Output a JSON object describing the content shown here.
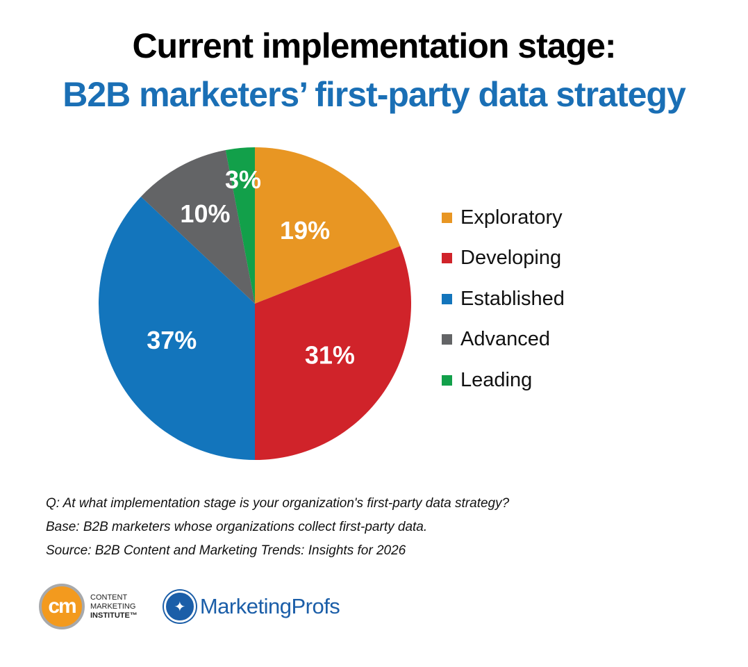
{
  "title": {
    "line1": "Current implementation stage:",
    "line2": "B2B marketers’ first-party data strategy"
  },
  "colors": {
    "Exploratory": "#e89623",
    "Developing": "#d0232a",
    "Established": "#1375bc",
    "Advanced": "#636466",
    "Leading": "#12a04a",
    "title_accent": "#1a6fb5"
  },
  "legend": [
    {
      "label": "Exploratory",
      "color": "#e89623"
    },
    {
      "label": "Developing",
      "color": "#d0232a"
    },
    {
      "label": "Established",
      "color": "#1375bc"
    },
    {
      "label": "Advanced",
      "color": "#636466"
    },
    {
      "label": "Leading",
      "color": "#12a04a"
    }
  ],
  "notes": {
    "question": "Q: At what implementation stage is your organization's first-party data strategy?",
    "base": "Base: B2B marketers whose organizations collect first-party data.",
    "source": "Source: B2B Content and Marketing Trends: Insights for 2026"
  },
  "logos": {
    "cmi_badge": "cm",
    "cmi_line1": "CONTENT",
    "cmi_line2": "MARKETING",
    "cmi_line3": "INSTITUTE™",
    "mp_name": "MarketingProfs"
  },
  "chart_data": {
    "type": "pie",
    "title": "Current implementation stage: B2B marketers’ first-party data strategy",
    "categories": [
      "Exploratory",
      "Developing",
      "Established",
      "Advanced",
      "Leading"
    ],
    "values": [
      19,
      31,
      37,
      10,
      3
    ],
    "labels": [
      "19%",
      "31%",
      "37%",
      "10%",
      "3%"
    ],
    "colors": [
      "#e89623",
      "#d0232a",
      "#1375bc",
      "#636466",
      "#12a04a"
    ],
    "start_angle": "12 o'clock, clockwise",
    "legend_position": "right"
  }
}
